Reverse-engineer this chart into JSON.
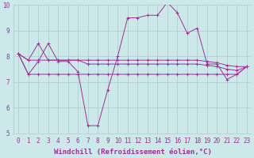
{
  "xlabel": "Windchill (Refroidissement éolien,°C)",
  "background_color": "#cce8e8",
  "grid_color": "#aacccc",
  "line_color": "#993399",
  "xlim": [
    -0.5,
    23.5
  ],
  "ylim": [
    5,
    10
  ],
  "xticks": [
    0,
    1,
    2,
    3,
    4,
    5,
    6,
    7,
    8,
    9,
    10,
    11,
    12,
    13,
    14,
    15,
    16,
    17,
    18,
    19,
    20,
    21,
    22,
    23
  ],
  "yticks": [
    5,
    6,
    7,
    8,
    9,
    10
  ],
  "series": [
    [
      8.1,
      7.3,
      7.8,
      8.5,
      7.8,
      7.8,
      7.4,
      5.3,
      5.3,
      6.7,
      8.0,
      9.5,
      9.5,
      9.6,
      9.6,
      10.1,
      9.7,
      8.9,
      9.1,
      7.7,
      7.7,
      7.1,
      7.3,
      7.6
    ],
    [
      8.1,
      7.85,
      8.5,
      7.85,
      7.85,
      7.85,
      7.85,
      7.85,
      7.85,
      7.85,
      7.85,
      7.85,
      7.85,
      7.85,
      7.85,
      7.85,
      7.85,
      7.85,
      7.85,
      7.8,
      7.75,
      7.65,
      7.6,
      7.6
    ],
    [
      8.1,
      7.85,
      7.85,
      7.85,
      7.85,
      7.85,
      7.85,
      7.7,
      7.7,
      7.7,
      7.7,
      7.7,
      7.7,
      7.7,
      7.7,
      7.7,
      7.7,
      7.7,
      7.7,
      7.65,
      7.6,
      7.5,
      7.45,
      7.6
    ],
    [
      8.1,
      7.3,
      7.3,
      7.3,
      7.3,
      7.3,
      7.3,
      7.3,
      7.3,
      7.3,
      7.3,
      7.3,
      7.3,
      7.3,
      7.3,
      7.3,
      7.3,
      7.3,
      7.3,
      7.3,
      7.3,
      7.3,
      7.3,
      7.6
    ]
  ],
  "marker": "+",
  "markersize": 3,
  "linewidth": 0.7,
  "tick_fontsize": 5.5,
  "label_fontsize": 6.5
}
